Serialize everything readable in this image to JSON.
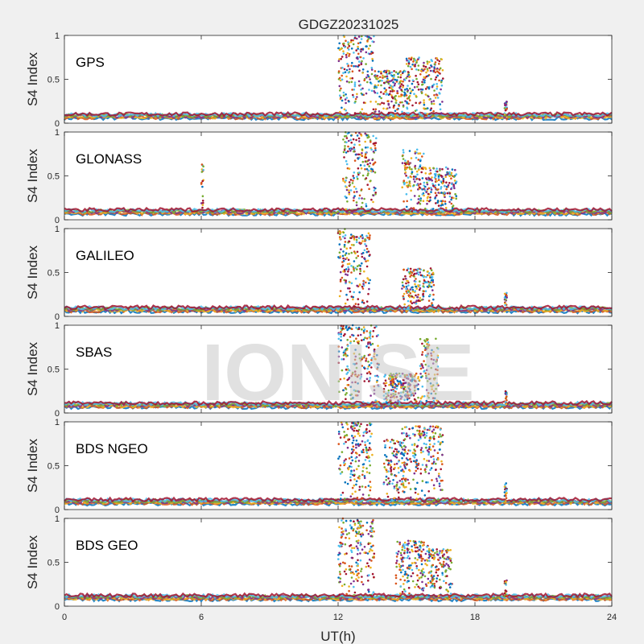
{
  "figure": {
    "title": "GDGZ20231025",
    "xlabel": "UT(h)",
    "ylabel": "S4 Index",
    "watermark": "IONISE",
    "background": "#f0f0f0",
    "axes_color": "#ffffff"
  },
  "chart_data": [
    {
      "type": "scatter",
      "label": "GPS",
      "xlim": [
        0,
        24
      ],
      "ylim": [
        0,
        1
      ],
      "xticks": [
        "0",
        "6",
        "12",
        "18",
        "24"
      ],
      "yticks": [
        "0",
        "0.5",
        "1"
      ],
      "xlabel": "",
      "ylabel": "S4 Index",
      "series_colors": [
        "#0072BD",
        "#D95319",
        "#EDB120",
        "#7E2F8E",
        "#77AC30",
        "#4DBEEE",
        "#A2142F"
      ],
      "baseline": 0.08,
      "bursts": [
        {
          "x": [
            12.0,
            13.6
          ],
          "peak": 1.0
        },
        {
          "x": [
            13.6,
            15.0
          ],
          "peak": 0.6
        },
        {
          "x": [
            15.0,
            16.6
          ],
          "peak": 0.75
        },
        {
          "x": [
            19.3,
            19.4
          ],
          "peak": 0.25
        }
      ]
    },
    {
      "type": "scatter",
      "label": "GLONASS",
      "xlim": [
        0,
        24
      ],
      "ylim": [
        0,
        1
      ],
      "xticks": [
        "0",
        "6",
        "12",
        "18",
        "24"
      ],
      "yticks": [
        "0",
        "0.5",
        "1"
      ],
      "xlabel": "",
      "ylabel": "S4 Index",
      "series_colors": [
        "#0072BD",
        "#D95319",
        "#EDB120",
        "#7E2F8E",
        "#77AC30",
        "#4DBEEE",
        "#A2142F"
      ],
      "baseline": 0.09,
      "bursts": [
        {
          "x": [
            6.0,
            6.1
          ],
          "peak": 0.65
        },
        {
          "x": [
            12.2,
            13.7
          ],
          "peak": 1.0
        },
        {
          "x": [
            14.8,
            15.8
          ],
          "peak": 0.8
        },
        {
          "x": [
            15.8,
            17.2
          ],
          "peak": 0.6
        }
      ]
    },
    {
      "type": "scatter",
      "label": "GALILEO",
      "xlim": [
        0,
        24
      ],
      "ylim": [
        0,
        1
      ],
      "xticks": [
        "0",
        "6",
        "12",
        "18",
        "24"
      ],
      "yticks": [
        "0",
        "0.5",
        "1"
      ],
      "xlabel": "",
      "ylabel": "S4 Index",
      "series_colors": [
        "#0072BD",
        "#D95319",
        "#EDB120",
        "#7E2F8E",
        "#77AC30",
        "#4DBEEE",
        "#A2142F"
      ],
      "baseline": 0.08,
      "bursts": [
        {
          "x": [
            12.0,
            12.5
          ],
          "peak": 1.0
        },
        {
          "x": [
            12.5,
            13.4
          ],
          "peak": 0.95
        },
        {
          "x": [
            14.8,
            16.2
          ],
          "peak": 0.55
        },
        {
          "x": [
            19.3,
            19.4
          ],
          "peak": 0.3
        }
      ]
    },
    {
      "type": "scatter",
      "label": "SBAS",
      "xlim": [
        0,
        24
      ],
      "ylim": [
        0,
        1
      ],
      "xticks": [
        "0",
        "6",
        "12",
        "18",
        "24"
      ],
      "yticks": [
        "0",
        "0.5",
        "1"
      ],
      "xlabel": "",
      "ylabel": "S4 Index",
      "series_colors": [
        "#0072BD",
        "#D95319",
        "#EDB120",
        "#7E2F8E",
        "#77AC30",
        "#4DBEEE",
        "#A2142F"
      ],
      "baseline": 0.09,
      "bursts": [
        {
          "x": [
            12.0,
            13.8
          ],
          "peak": 1.0
        },
        {
          "x": [
            14.0,
            15.6
          ],
          "peak": 0.45
        },
        {
          "x": [
            15.6,
            16.4
          ],
          "peak": 0.85
        },
        {
          "x": [
            19.3,
            19.4
          ],
          "peak": 0.25
        }
      ]
    },
    {
      "type": "scatter",
      "label": "BDS NGEO",
      "xlim": [
        0,
        24
      ],
      "ylim": [
        0,
        1
      ],
      "xticks": [
        "0",
        "6",
        "12",
        "18",
        "24"
      ],
      "yticks": [
        "0",
        "0.5",
        "1"
      ],
      "xlabel": "",
      "ylabel": "S4 Index",
      "series_colors": [
        "#0072BD",
        "#D95319",
        "#EDB120",
        "#7E2F8E",
        "#77AC30",
        "#4DBEEE",
        "#A2142F"
      ],
      "baseline": 0.09,
      "bursts": [
        {
          "x": [
            12.0,
            13.5
          ],
          "peak": 1.0
        },
        {
          "x": [
            14.0,
            15.0
          ],
          "peak": 0.8
        },
        {
          "x": [
            14.8,
            16.6
          ],
          "peak": 0.95
        },
        {
          "x": [
            19.3,
            19.4
          ],
          "peak": 0.3
        }
      ]
    },
    {
      "type": "scatter",
      "label": "BDS GEO",
      "xlim": [
        0,
        24
      ],
      "ylim": [
        0,
        1
      ],
      "xticks": [
        "0",
        "6",
        "12",
        "18",
        "24"
      ],
      "yticks": [
        "0",
        "0.5",
        "1"
      ],
      "xlabel": "UT(h)",
      "ylabel": "S4 Index",
      "series_colors": [
        "#0072BD",
        "#D95319",
        "#EDB120",
        "#7E2F8E",
        "#77AC30",
        "#4DBEEE",
        "#A2142F"
      ],
      "baseline": 0.1,
      "bursts": [
        {
          "x": [
            12.0,
            13.6
          ],
          "peak": 1.0
        },
        {
          "x": [
            14.5,
            16.0
          ],
          "peak": 0.75
        },
        {
          "x": [
            16.0,
            17.0
          ],
          "peak": 0.65
        },
        {
          "x": [
            19.3,
            19.4
          ],
          "peak": 0.3
        }
      ]
    }
  ]
}
